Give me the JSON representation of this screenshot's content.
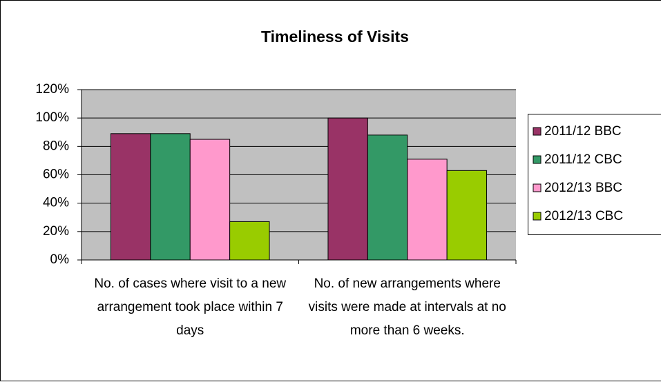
{
  "chart_data": {
    "type": "bar",
    "title": "Timeliness of Visits",
    "categories": [
      "No. of cases where visit to a new arrangement took place within 7 days",
      "No. of new arrangements where visits were made at intervals at no more than 6 weeks."
    ],
    "series": [
      {
        "name": "2011/12 BBC",
        "color": "#993366",
        "values": [
          89,
          100
        ]
      },
      {
        "name": "2011/12 CBC",
        "color": "#339966",
        "values": [
          89,
          88
        ]
      },
      {
        "name": "2012/13 BBC",
        "color": "#ff99cc",
        "values": [
          85,
          71
        ]
      },
      {
        "name": "2012/13 CBC",
        "color": "#99cc00",
        "values": [
          27,
          63
        ]
      }
    ],
    "ylim": [
      0,
      120
    ],
    "yticks": [
      {
        "value": 0,
        "label": "0%"
      },
      {
        "value": 20,
        "label": "20%"
      },
      {
        "value": 40,
        "label": "40%"
      },
      {
        "value": 60,
        "label": "60%"
      },
      {
        "value": 80,
        "label": "80%"
      },
      {
        "value": 100,
        "label": "100%"
      },
      {
        "value": 120,
        "label": "120%"
      }
    ],
    "grid": true,
    "legend": "right",
    "plot_background": "#c0c0c0"
  }
}
